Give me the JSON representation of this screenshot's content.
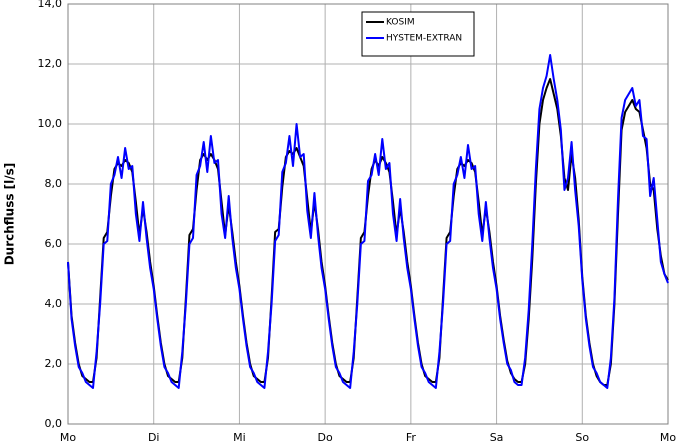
{
  "chart_data": {
    "type": "line",
    "y_label": "Durchfluss [l/s]",
    "xlim": [
      0,
      168
    ],
    "xticks": [
      {
        "value": 0,
        "label": "Mo"
      },
      {
        "value": 24,
        "label": "Di"
      },
      {
        "value": 48,
        "label": "Mi"
      },
      {
        "value": 72,
        "label": "Do"
      },
      {
        "value": 96,
        "label": "Fr"
      },
      {
        "value": 120,
        "label": "Sa"
      },
      {
        "value": 144,
        "label": "So"
      },
      {
        "value": 168,
        "label": "Mo"
      }
    ],
    "ylim": [
      0,
      14
    ],
    "yticks": [
      {
        "value": 0,
        "label": "0,0"
      },
      {
        "value": 2,
        "label": "2,0"
      },
      {
        "value": 4,
        "label": "4,0"
      },
      {
        "value": 6,
        "label": "6,0"
      },
      {
        "value": 8,
        "label": "8,0"
      },
      {
        "value": 10,
        "label": "10,0"
      },
      {
        "value": 12,
        "label": "12,0"
      },
      {
        "value": 14,
        "label": "14,0"
      }
    ],
    "grid": true,
    "legend": "upper center",
    "x": [
      0,
      1,
      2,
      3,
      4,
      5,
      6,
      7,
      8,
      9,
      10,
      11,
      12,
      13,
      14,
      15,
      16,
      17,
      18,
      19,
      20,
      21,
      22,
      23,
      24,
      25,
      26,
      27,
      28,
      29,
      30,
      31,
      32,
      33,
      34,
      35,
      36,
      37,
      38,
      39,
      40,
      41,
      42,
      43,
      44,
      45,
      46,
      47,
      48,
      49,
      50,
      51,
      52,
      53,
      54,
      55,
      56,
      57,
      58,
      59,
      60,
      61,
      62,
      63,
      64,
      65,
      66,
      67,
      68,
      69,
      70,
      71,
      72,
      73,
      74,
      75,
      76,
      77,
      78,
      79,
      80,
      81,
      82,
      83,
      84,
      85,
      86,
      87,
      88,
      89,
      90,
      91,
      92,
      93,
      94,
      95,
      96,
      97,
      98,
      99,
      100,
      101,
      102,
      103,
      104,
      105,
      106,
      107,
      108,
      109,
      110,
      111,
      112,
      113,
      114,
      115,
      116,
      117,
      118,
      119,
      120,
      121,
      122,
      123,
      124,
      125,
      126,
      127,
      128,
      129,
      130,
      131,
      132,
      133,
      134,
      135,
      136,
      137,
      138,
      139,
      140,
      141,
      142,
      143,
      144,
      145,
      146,
      147,
      148,
      149,
      150,
      151,
      152,
      153,
      154,
      155,
      156,
      157,
      158,
      159,
      160,
      161,
      162,
      163,
      164,
      165,
      166,
      167,
      168
    ],
    "series": [
      {
        "name": "KOSIM",
        "color": "#000000",
        "values": [
          5.4,
          3.6,
          2.7,
          2.0,
          1.6,
          1.5,
          1.4,
          1.4,
          2.2,
          4.2,
          6.2,
          6.4,
          7.6,
          8.5,
          8.7,
          8.6,
          8.8,
          8.7,
          8.4,
          7.4,
          6.3,
          7.2,
          6.4,
          5.4,
          4.6,
          3.6,
          2.7,
          2.0,
          1.6,
          1.5,
          1.4,
          1.4,
          2.2,
          4.2,
          6.3,
          6.5,
          7.8,
          8.8,
          9.0,
          8.8,
          9.0,
          8.8,
          8.5,
          7.4,
          6.3,
          7.3,
          6.4,
          5.4,
          4.6,
          3.6,
          2.7,
          2.0,
          1.6,
          1.5,
          1.4,
          1.4,
          2.2,
          4.2,
          6.4,
          6.5,
          7.9,
          8.9,
          9.1,
          9.0,
          9.2,
          8.9,
          8.6,
          7.5,
          6.4,
          7.4,
          6.5,
          5.4,
          4.6,
          3.6,
          2.7,
          2.0,
          1.6,
          1.5,
          1.4,
          1.4,
          2.2,
          4.2,
          6.2,
          6.4,
          7.6,
          8.5,
          8.8,
          8.6,
          8.9,
          8.7,
          8.4,
          7.4,
          6.3,
          7.2,
          6.4,
          5.4,
          4.6,
          3.6,
          2.7,
          2.0,
          1.6,
          1.5,
          1.4,
          1.4,
          2.2,
          4.2,
          6.2,
          6.4,
          7.6,
          8.5,
          8.7,
          8.6,
          8.8,
          8.7,
          8.4,
          7.4,
          6.3,
          7.2,
          6.4,
          5.4,
          4.6,
          3.6,
          2.8,
          2.1,
          1.7,
          1.5,
          1.4,
          1.4,
          2.0,
          3.5,
          5.5,
          8.0,
          10.0,
          10.8,
          11.2,
          11.5,
          11.0,
          10.5,
          9.6,
          8.2,
          7.8,
          9.0,
          8.2,
          6.8,
          4.9,
          3.6,
          2.7,
          2.0,
          1.6,
          1.4,
          1.3,
          1.3,
          2.0,
          4.0,
          7.0,
          9.8,
          10.4,
          10.6,
          10.8,
          10.5,
          10.4,
          9.8,
          9.2,
          8.0,
          7.8,
          6.5,
          5.6,
          5.0,
          4.8
        ]
      },
      {
        "name": "HYSTEM-EXTRAN",
        "color": "#0000ff",
        "values": [
          5.4,
          3.5,
          2.6,
          1.9,
          1.7,
          1.4,
          1.3,
          1.2,
          2.4,
          4.0,
          6.0,
          6.1,
          8.0,
          8.3,
          8.9,
          8.2,
          9.2,
          8.5,
          8.6,
          7.0,
          6.1,
          7.4,
          6.2,
          5.2,
          4.5,
          3.5,
          2.6,
          1.9,
          1.7,
          1.4,
          1.3,
          1.2,
          2.4,
          4.0,
          6.0,
          6.2,
          8.3,
          8.6,
          9.4,
          8.4,
          9.6,
          8.7,
          8.8,
          7.0,
          6.2,
          7.6,
          6.2,
          5.2,
          4.5,
          3.5,
          2.6,
          1.9,
          1.7,
          1.4,
          1.3,
          1.2,
          2.4,
          4.0,
          6.1,
          6.3,
          8.4,
          8.7,
          9.6,
          8.6,
          10.0,
          8.9,
          9.0,
          7.1,
          6.2,
          7.7,
          6.3,
          5.2,
          4.5,
          3.5,
          2.6,
          1.9,
          1.7,
          1.4,
          1.3,
          1.2,
          2.4,
          4.0,
          6.0,
          6.1,
          8.1,
          8.3,
          9.0,
          8.3,
          9.5,
          8.5,
          8.7,
          7.0,
          6.1,
          7.5,
          6.2,
          5.2,
          4.5,
          3.5,
          2.6,
          1.9,
          1.7,
          1.4,
          1.3,
          1.2,
          2.4,
          4.0,
          6.0,
          6.1,
          8.0,
          8.3,
          8.9,
          8.2,
          9.3,
          8.5,
          8.6,
          7.0,
          6.1,
          7.4,
          6.2,
          5.2,
          4.5,
          3.5,
          2.7,
          2.0,
          1.8,
          1.4,
          1.3,
          1.3,
          2.2,
          3.8,
          6.0,
          8.5,
          10.5,
          11.2,
          11.6,
          12.3,
          11.5,
          10.8,
          9.8,
          7.8,
          8.2,
          9.4,
          7.8,
          6.6,
          4.8,
          3.5,
          2.6,
          1.9,
          1.7,
          1.4,
          1.3,
          1.2,
          2.2,
          4.2,
          7.5,
          10.2,
          10.8,
          11.0,
          11.2,
          10.6,
          10.8,
          9.6,
          9.5,
          7.6,
          8.2,
          6.8,
          5.4,
          5.0,
          4.7
        ]
      }
    ]
  }
}
